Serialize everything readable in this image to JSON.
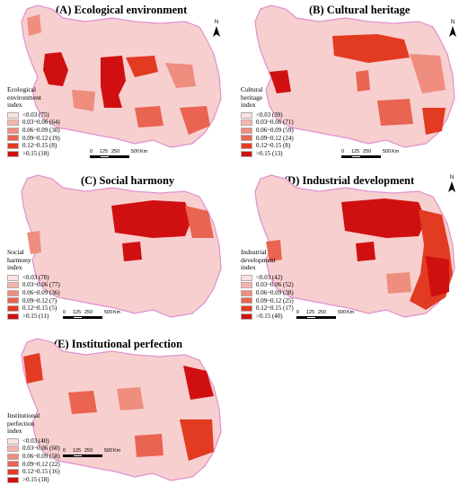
{
  "panels": [
    {
      "title": "(A) Ecological environment",
      "legend_title": [
        "Ecological",
        "environment",
        "index"
      ],
      "legend": [
        {
          "label": "<0.03 (75)",
          "color": "#fbe3e3"
        },
        {
          "label": "0.03~0.06 (64)",
          "color": "#f5b5ad"
        },
        {
          "label": "0.06~0.09 (30)",
          "color": "#ef8d7e"
        },
        {
          "label": "0.09~0.12 (19)",
          "color": "#e96451"
        },
        {
          "label": "0.12~0.15 (8)",
          "color": "#e33a22"
        },
        {
          "label": ">0.15 (18)",
          "color": "#d01010"
        }
      ]
    },
    {
      "title": "(B) Cultural heritage",
      "legend_title": [
        "Cultural",
        "heritage",
        "index"
      ],
      "legend": [
        {
          "label": "<0.03 (39)",
          "color": "#fbe3e3"
        },
        {
          "label": "0.03~0.06 (71)",
          "color": "#f5b5ad"
        },
        {
          "label": "0.06~0.09 (59)",
          "color": "#ef8d7e"
        },
        {
          "label": "0.09~0.12 (24)",
          "color": "#e96451"
        },
        {
          "label": "0.12~0.15 (8)",
          "color": "#e33a22"
        },
        {
          "label": ">0.15 (13)",
          "color": "#d01010"
        }
      ]
    },
    {
      "title": "(C) Social harmony",
      "legend_title": [
        "Social",
        "harmony",
        "index"
      ],
      "legend": [
        {
          "label": "<0.03 (78)",
          "color": "#fbe3e3"
        },
        {
          "label": "0.03~0.06 (77)",
          "color": "#f5b5ad"
        },
        {
          "label": "0.06~0.09 (36)",
          "color": "#ef8d7e"
        },
        {
          "label": "0.09~0.12 (7)",
          "color": "#e96451"
        },
        {
          "label": "0.12~0.15 (5)",
          "color": "#e33a22"
        },
        {
          "label": ">0.15 (11)",
          "color": "#d01010"
        }
      ]
    },
    {
      "title": "(D) Industrial development",
      "legend_title": [
        "Industrial",
        "development",
        "index"
      ],
      "legend": [
        {
          "label": "<0.03 (42)",
          "color": "#fbe3e3"
        },
        {
          "label": "0.03~0.06 (52)",
          "color": "#f5b5ad"
        },
        {
          "label": "0.06~0.09 (38)",
          "color": "#ef8d7e"
        },
        {
          "label": "0.09~0.12 (25)",
          "color": "#e96451"
        },
        {
          "label": "0.12~0.15 (17)",
          "color": "#e33a22"
        },
        {
          "label": ">0.15 (40)",
          "color": "#d01010"
        }
      ]
    },
    {
      "title": "(E) Institutional perfection",
      "legend_title": [
        "Institutional",
        "perfection",
        "index"
      ],
      "legend": [
        {
          "label": "<0.03 (40)",
          "color": "#fbe3e3"
        },
        {
          "label": "0.03~0.06 (60)",
          "color": "#f5b5ad"
        },
        {
          "label": "0.06~0.09 (58)",
          "color": "#ef8d7e"
        },
        {
          "label": "0.09~0.12 (22)",
          "color": "#e96451"
        },
        {
          "label": "0.12~0.15 (16)",
          "color": "#e33a22"
        },
        {
          "label": ">0.15 (18)",
          "color": "#d01010"
        }
      ]
    }
  ],
  "scale": {
    "ticks": [
      "0",
      "125",
      "250",
      "500"
    ],
    "unit": "Km"
  },
  "north_label": "N",
  "colors": {
    "base": "#f7cfcf",
    "border": "#e9a8a8",
    "outline": "#e090d0"
  }
}
